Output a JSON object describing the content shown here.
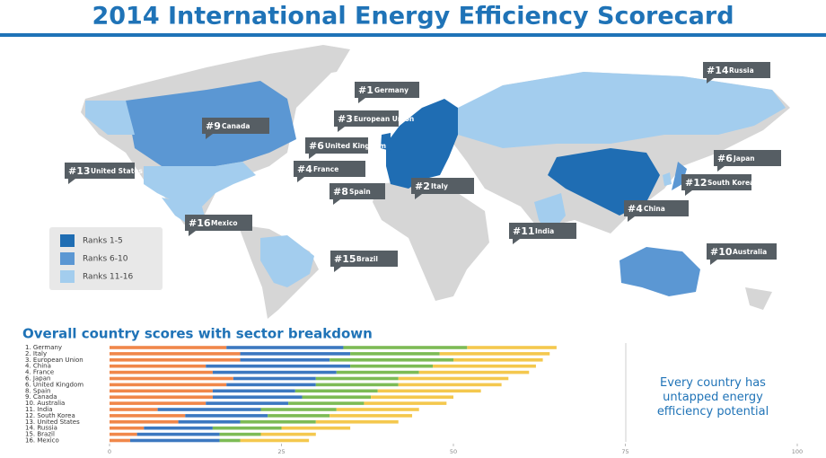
{
  "header": {
    "title": "2014 International Energy Efficiency Scorecard"
  },
  "map": {
    "legend": [
      {
        "label": "Ranks 1-5",
        "color": "#1f6db3"
      },
      {
        "label": "Ranks 6-10",
        "color": "#5b97d3"
      },
      {
        "label": "Ranks 11-16",
        "color": "#a3cdee"
      }
    ],
    "labels": [
      {
        "rank": "#1",
        "name": "Germany"
      },
      {
        "rank": "#3",
        "name": "European Union"
      },
      {
        "rank": "#6",
        "name": "United Kingdom"
      },
      {
        "rank": "#4",
        "name": "France"
      },
      {
        "rank": "#8",
        "name": "Spain"
      },
      {
        "rank": "#2",
        "name": "Italy"
      },
      {
        "rank": "#9",
        "name": "Canada"
      },
      {
        "rank": "#13",
        "name": "United States"
      },
      {
        "rank": "#16",
        "name": "Mexico"
      },
      {
        "rank": "#15",
        "name": "Brazil"
      },
      {
        "rank": "#14",
        "name": "Russia"
      },
      {
        "rank": "#6",
        "name": "Japan"
      },
      {
        "rank": "#12",
        "name": "South Korea"
      },
      {
        "rank": "#4",
        "name": "China"
      },
      {
        "rank": "#11",
        "name": "India"
      },
      {
        "rank": "#10",
        "name": "Australia"
      }
    ]
  },
  "chart_data": {
    "type": "stacked_barh",
    "title": "Overall country scores with sector breakdown",
    "categories": [
      "1. Germany",
      "2. Italy",
      "3. European Union",
      "4. China",
      "4. France",
      "6. Japan",
      "6. United Kingdom",
      "8. Spain",
      "9. Canada",
      "10. Australia",
      "11. India",
      "12. South Korea",
      "13. United States",
      "14. Russia",
      "15. Brazil",
      "16. Mexico"
    ],
    "series": [
      {
        "color": "#f0874a",
        "values": [
          17,
          19,
          19,
          14,
          15,
          18,
          17,
          15,
          15,
          14,
          7,
          11,
          10,
          5,
          4,
          3
        ]
      },
      {
        "color": "#3c78c0",
        "values": [
          17,
          16,
          13,
          21,
          18,
          12,
          13,
          12,
          13,
          12,
          15,
          12,
          9,
          10,
          12,
          13
        ]
      },
      {
        "color": "#7dbb55",
        "values": [
          18,
          13,
          18,
          12,
          12,
          12,
          12,
          12,
          10,
          11,
          11,
          9,
          11,
          10,
          6,
          3
        ]
      },
      {
        "color": "#f4c84e",
        "values": [
          13,
          16,
          13,
          15,
          16,
          16,
          15,
          15,
          12,
          12,
          12,
          12,
          12,
          10,
          8,
          10
        ]
      }
    ],
    "xlim": [
      0,
      100
    ],
    "xticks": [
      0,
      25,
      50,
      75,
      100
    ],
    "annotation": "Every country has untapped energy efficiency potential"
  }
}
